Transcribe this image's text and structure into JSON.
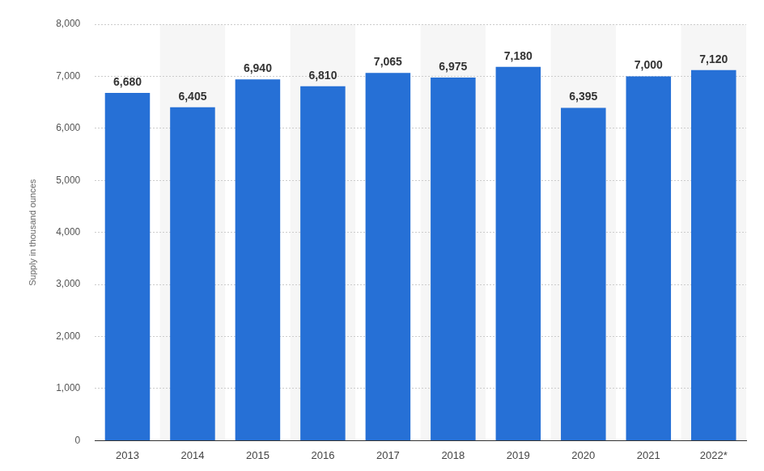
{
  "chart_data": {
    "type": "bar",
    "y_label": "Supply in thousand ounces",
    "categories": [
      "2013",
      "2014",
      "2015",
      "2016",
      "2017",
      "2018",
      "2019",
      "2020",
      "2021",
      "2022*"
    ],
    "values": [
      6680,
      6405,
      6940,
      6810,
      7065,
      6975,
      7180,
      6395,
      7000,
      7120
    ],
    "value_labels": [
      "6,680",
      "6,405",
      "6,940",
      "6,810",
      "7,065",
      "6,975",
      "7,180",
      "6,395",
      "7,000",
      "7,120"
    ],
    "color": "#2670d6",
    "ylim": [
      0,
      8000
    ],
    "yticks": [
      0,
      {
        "value": 1000,
        "label": "1,000"
      },
      {
        "value": 2000,
        "label": "2,000"
      },
      {
        "value": 3000,
        "label": "3,000"
      },
      {
        "value": 4000,
        "label": "4,000"
      },
      {
        "value": 5000,
        "label": "5,000"
      },
      {
        "value": 6000,
        "label": "6,000"
      },
      {
        "value": 7000,
        "label": "7,000"
      },
      {
        "value": 8000,
        "label": "8,000"
      }
    ],
    "grid": true,
    "data_labels": true
  }
}
